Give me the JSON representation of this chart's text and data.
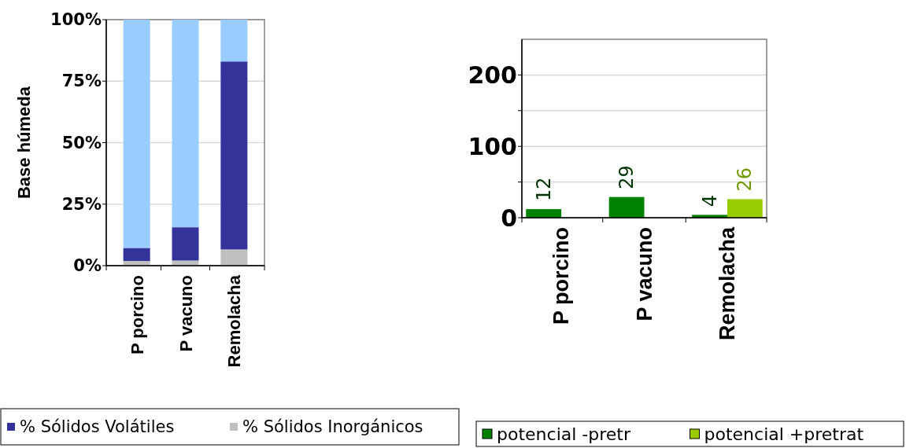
{
  "chart_data": [
    {
      "type": "bar",
      "stacked": true,
      "ylabel": "Base húmeda",
      "categories": [
        "P porcino",
        "P vacuno",
        "Remolacha"
      ],
      "series": [
        {
          "name": "% Sólidos Inorgánicos",
          "color": "#c0c0c0",
          "values": [
            1.9,
            2.1,
            6.6
          ]
        },
        {
          "name": "% Sólidos Volátiles",
          "color": "#333399",
          "values": [
            5.3,
            13.5,
            76.4
          ]
        },
        {
          "color": "#99ccff",
          "values": [
            92.8,
            84.4,
            17.0
          ]
        }
      ],
      "ylim": [
        0,
        100
      ],
      "yticks": [
        {
          "value": 0,
          "label": "0%"
        },
        {
          "value": 25,
          "label": "25%"
        },
        {
          "value": 50,
          "label": "50%"
        },
        {
          "value": 75,
          "label": "75%"
        },
        {
          "value": 100,
          "label": "100%"
        }
      ],
      "grid": "y",
      "legend": "bottom"
    },
    {
      "type": "bar",
      "categories": [
        "P porcino",
        "P vacuno",
        "Remolacha"
      ],
      "series": [
        {
          "name": "potencial -pretr",
          "color": "#008000",
          "values": [
            12,
            29,
            4
          ]
        },
        {
          "name": "potencial +pretrat",
          "color": "#99cc00",
          "values": [
            null,
            null,
            26
          ]
        }
      ],
      "ylim": [
        0,
        250
      ],
      "yticks": [
        0,
        {
          "value": 50,
          "label": null
        },
        100,
        {
          "value": 150,
          "label": null
        },
        200
      ],
      "grid": "y",
      "data_labels": true,
      "legend": "bottom"
    }
  ]
}
